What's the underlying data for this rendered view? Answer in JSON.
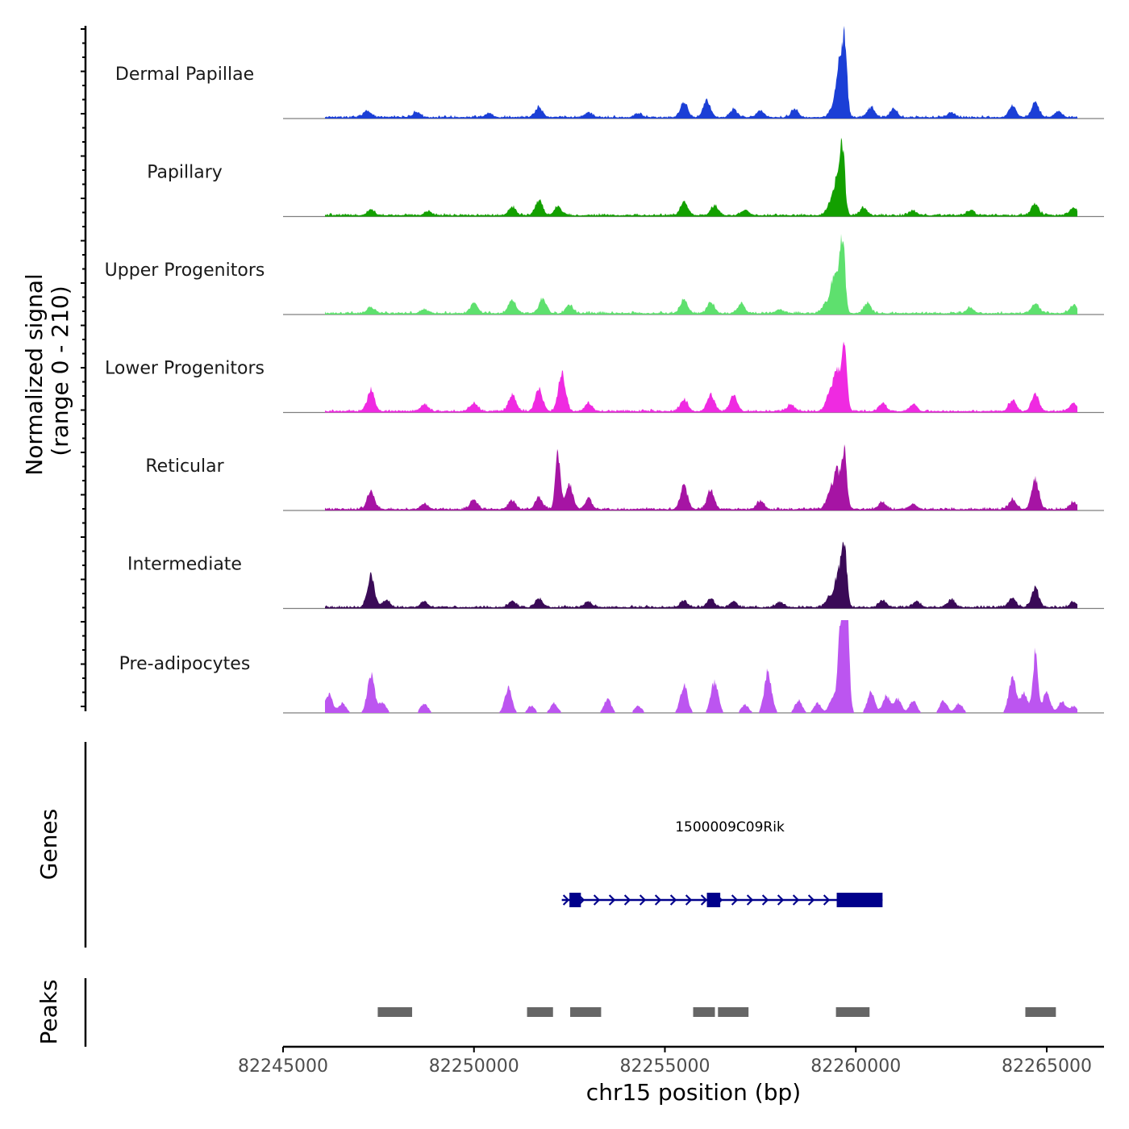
{
  "chart_data": {
    "type": "area",
    "title": "",
    "xlabel": "chr15 position (bp)",
    "ylabel": [
      "Normalized signal",
      "(range 0 - 210)"
    ],
    "signal_range": [
      0,
      210
    ],
    "xlim": [
      82245000,
      82266500
    ],
    "x_ticks": [
      82245000,
      82250000,
      82255000,
      82260000,
      82265000
    ],
    "x_tick_labels": [
      "82245000",
      "82250000",
      "82255000",
      "82260000",
      "82265000"
    ],
    "data_start": 82246100,
    "data_end": 82265800,
    "tracks": [
      {
        "name": "Dermal Papillae",
        "color": "#1b3fd6",
        "peaks": [
          [
            82247200,
            10
          ],
          [
            82248500,
            8
          ],
          [
            82250400,
            6
          ],
          [
            82251700,
            14
          ],
          [
            82253000,
            7
          ],
          [
            82254300,
            6
          ],
          [
            82255500,
            22
          ],
          [
            82256100,
            25
          ],
          [
            82256800,
            11
          ],
          [
            82257500,
            9
          ],
          [
            82258400,
            12
          ],
          [
            82259400,
            14
          ],
          [
            82259700,
            112
          ],
          [
            82259550,
            70
          ],
          [
            82260400,
            14
          ],
          [
            82261000,
            11
          ],
          [
            82262500,
            7
          ],
          [
            82264100,
            17
          ],
          [
            82264700,
            21
          ],
          [
            82265300,
            9
          ]
        ]
      },
      {
        "name": "Papillary",
        "color": "#13a000",
        "peaks": [
          [
            82247300,
            8
          ],
          [
            82248800,
            6
          ],
          [
            82251000,
            12
          ],
          [
            82251700,
            22
          ],
          [
            82252200,
            12
          ],
          [
            82255500,
            20
          ],
          [
            82256300,
            14
          ],
          [
            82257100,
            8
          ],
          [
            82259300,
            12
          ],
          [
            82259650,
            88
          ],
          [
            82259500,
            50
          ],
          [
            82260200,
            10
          ],
          [
            82261500,
            6
          ],
          [
            82263000,
            7
          ],
          [
            82264700,
            15
          ],
          [
            82265700,
            11
          ]
        ]
      },
      {
        "name": "Upper Progenitors",
        "color": "#5ee06e",
        "peaks": [
          [
            82247300,
            9
          ],
          [
            82248700,
            6
          ],
          [
            82250000,
            15
          ],
          [
            82251000,
            20
          ],
          [
            82251800,
            22
          ],
          [
            82252500,
            12
          ],
          [
            82255500,
            20
          ],
          [
            82256200,
            16
          ],
          [
            82257000,
            14
          ],
          [
            82258000,
            6
          ],
          [
            82259200,
            12
          ],
          [
            82259650,
            105
          ],
          [
            82259450,
            60
          ],
          [
            82260300,
            14
          ],
          [
            82263000,
            8
          ],
          [
            82264700,
            14
          ],
          [
            82265700,
            13
          ]
        ]
      },
      {
        "name": "Lower Progenitors",
        "color": "#ef2ae1",
        "peaks": [
          [
            82247300,
            30
          ],
          [
            82248700,
            10
          ],
          [
            82250000,
            12
          ],
          [
            82251000,
            25
          ],
          [
            82251700,
            32
          ],
          [
            82252300,
            55
          ],
          [
            82253000,
            12
          ],
          [
            82255500,
            18
          ],
          [
            82256200,
            25
          ],
          [
            82256800,
            22
          ],
          [
            82258300,
            10
          ],
          [
            82259300,
            22
          ],
          [
            82259700,
            90
          ],
          [
            82259500,
            60
          ],
          [
            82260700,
            12
          ],
          [
            82261500,
            10
          ],
          [
            82264100,
            16
          ],
          [
            82264700,
            26
          ],
          [
            82265700,
            12
          ]
        ]
      },
      {
        "name": "Reticular",
        "color": "#a614a4",
        "peaks": [
          [
            82247300,
            26
          ],
          [
            82248700,
            8
          ],
          [
            82250000,
            14
          ],
          [
            82251000,
            12
          ],
          [
            82251700,
            18
          ],
          [
            82252200,
            80
          ],
          [
            82252500,
            35
          ],
          [
            82253000,
            14
          ],
          [
            82255500,
            33
          ],
          [
            82256200,
            28
          ],
          [
            82257500,
            12
          ],
          [
            82259300,
            18
          ],
          [
            82259700,
            80
          ],
          [
            82259500,
            55
          ],
          [
            82260700,
            10
          ],
          [
            82261500,
            8
          ],
          [
            82264100,
            14
          ],
          [
            82264700,
            42
          ],
          [
            82265700,
            10
          ]
        ]
      },
      {
        "name": "Intermediate",
        "color": "#3a0a57",
        "peaks": [
          [
            82247300,
            45
          ],
          [
            82247700,
            10
          ],
          [
            82248700,
            8
          ],
          [
            82251000,
            9
          ],
          [
            82251700,
            12
          ],
          [
            82253000,
            8
          ],
          [
            82255500,
            10
          ],
          [
            82256200,
            12
          ],
          [
            82256800,
            8
          ],
          [
            82258000,
            8
          ],
          [
            82259300,
            14
          ],
          [
            82259700,
            82
          ],
          [
            82259550,
            50
          ],
          [
            82260700,
            10
          ],
          [
            82261600,
            8
          ],
          [
            82262500,
            12
          ],
          [
            82264100,
            14
          ],
          [
            82264700,
            28
          ],
          [
            82265700,
            8
          ]
        ]
      }
    ],
    "sparse_track": {
      "name": "Pre-adipocytes",
      "color": "#bc55f0",
      "peaks": [
        [
          82246200,
          28
        ],
        [
          82246550,
          14
        ],
        [
          82247300,
          55
        ],
        [
          82247600,
          15
        ],
        [
          82248700,
          14
        ],
        [
          82250900,
          35
        ],
        [
          82251500,
          10
        ],
        [
          82252100,
          14
        ],
        [
          82253500,
          20
        ],
        [
          82254300,
          10
        ],
        [
          82255500,
          40
        ],
        [
          82256300,
          45
        ],
        [
          82257100,
          12
        ],
        [
          82257700,
          60
        ],
        [
          82258500,
          18
        ],
        [
          82259000,
          14
        ],
        [
          82259400,
          22
        ],
        [
          82259750,
          195
        ],
        [
          82259600,
          120
        ],
        [
          82260400,
          30
        ],
        [
          82260800,
          25
        ],
        [
          82261100,
          20
        ],
        [
          82261500,
          18
        ],
        [
          82262300,
          18
        ],
        [
          82262700,
          14
        ],
        [
          82264100,
          50
        ],
        [
          82264400,
          28
        ],
        [
          82264700,
          86
        ],
        [
          82265000,
          30
        ],
        [
          82265400,
          16
        ],
        [
          82265700,
          10
        ]
      ]
    },
    "gene": {
      "name": "1500009C09Rik",
      "color": "#00008b",
      "start": 82252300,
      "end": 82260700,
      "strand": "+",
      "exons": [
        [
          82252500,
          82252800
        ],
        [
          82256100,
          82256450
        ],
        [
          82259500,
          82260700
        ]
      ]
    },
    "peaks_track": {
      "color": "#666666",
      "regions": [
        [
          82247480,
          82248380
        ],
        [
          82251390,
          82252070
        ],
        [
          82252520,
          82253330
        ],
        [
          82255740,
          82256310
        ],
        [
          82256390,
          82257190
        ],
        [
          82259480,
          82260360
        ],
        [
          82264440,
          82265240
        ]
      ]
    },
    "panel_labels": {
      "genes": "Genes",
      "peaks": "Peaks"
    }
  }
}
